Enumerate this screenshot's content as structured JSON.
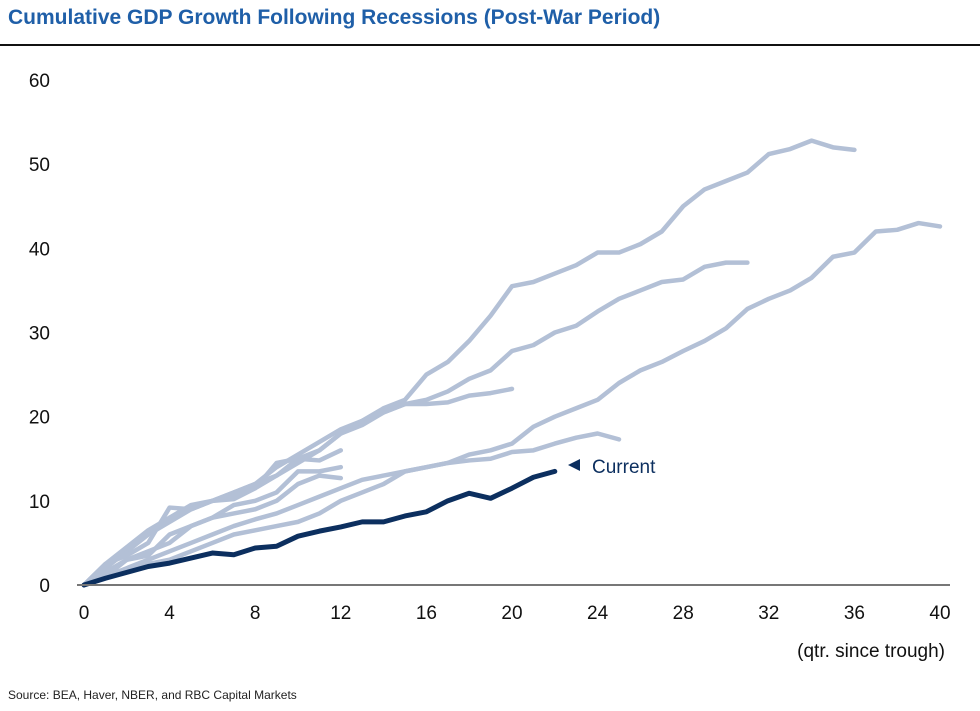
{
  "title": "Cumulative GDP Growth Following Recessions (Post-War Period)",
  "source": "Source: BEA, Haver, NBER, and RBC Capital Markets",
  "chart_data": {
    "type": "line",
    "title": "Cumulative GDP Growth Following Recessions (Post-War Period)",
    "xlabel": "(qtr. since trough)",
    "ylabel": "",
    "xlim": [
      0,
      40
    ],
    "ylim": [
      0,
      60
    ],
    "xticks": [
      0,
      4,
      8,
      12,
      16,
      20,
      24,
      28,
      32,
      36,
      40
    ],
    "yticks": [
      0,
      10,
      20,
      30,
      40,
      50,
      60
    ],
    "grid": false,
    "colors": {
      "past": "#b3c0d6",
      "current": "#0c2f5f",
      "title": "#1f5fa8"
    },
    "annotation": "Current",
    "series": [
      {
        "values": [
          0,
          2,
          4,
          6,
          8,
          9.5,
          10,
          11,
          12,
          14,
          15.5,
          17,
          18.5,
          19.5,
          21,
          22,
          25,
          26.5,
          29,
          32,
          35.5,
          36,
          37,
          38,
          39.5,
          39.5,
          40.5,
          42,
          45,
          47,
          48,
          49,
          51.2,
          51.8,
          52.8,
          52,
          51.7
        ]
      },
      {
        "values": [
          0,
          2,
          4,
          6,
          7.5,
          9,
          10,
          10.5,
          11.5,
          13,
          15,
          16,
          18,
          19,
          20.5,
          21.5,
          22,
          23,
          24.5,
          25.5,
          27.8,
          28.5,
          30,
          30.8,
          32.5,
          34,
          35,
          36,
          36.3,
          37.8,
          38.3,
          38.3
        ]
      },
      {
        "values": [
          0,
          1,
          1.8,
          2.5,
          3,
          4,
          5,
          6,
          6.5,
          7,
          7.5,
          8.5,
          10,
          11,
          12,
          13.5,
          14,
          14.5,
          15.5,
          16,
          16.8,
          18.8,
          20,
          21,
          22,
          24,
          25.5,
          26.5,
          27.8,
          29,
          30.5,
          32.8,
          34,
          35,
          36.5,
          39,
          39.5,
          42,
          42.2,
          43,
          42.6
        ]
      },
      {
        "values": [
          0,
          1,
          2,
          3,
          4,
          5,
          6,
          7,
          7.8,
          8.5,
          9.5,
          10.5,
          11.5,
          12.5,
          13,
          13.5,
          14,
          14.5,
          14.8,
          15,
          15.8,
          16,
          16.8,
          17.5,
          18,
          17.3
        ]
      },
      {
        "values": [
          0,
          2.5,
          4.5,
          6.5,
          8,
          9,
          10,
          11,
          12,
          13,
          14.5,
          16,
          18,
          19.5,
          20.5,
          21.5,
          21.5,
          21.7,
          22.5,
          22.8,
          23.3
        ]
      },
      {
        "values": [
          0,
          2.5,
          3.5,
          5,
          9.2,
          9,
          10,
          10.2,
          11.5,
          14.5,
          15,
          14.8,
          16
        ]
      },
      {
        "values": [
          0,
          1.5,
          3,
          4,
          5,
          7,
          8,
          9.5,
          10,
          11,
          13.5,
          13.5,
          14
        ]
      },
      {
        "values": [
          0,
          1,
          3,
          3.5,
          6,
          7,
          8,
          8.5,
          9,
          10,
          12,
          13,
          12.7
        ]
      },
      {
        "name": "Current",
        "values": [
          0,
          0.8,
          1.5,
          2.2,
          2.6,
          3.2,
          3.8,
          3.6,
          4.4,
          4.6,
          5.8,
          6.4,
          6.9,
          7.5,
          7.5,
          8.2,
          8.7,
          10,
          10.9,
          10.3,
          11.5,
          12.8,
          13.5
        ]
      }
    ]
  }
}
